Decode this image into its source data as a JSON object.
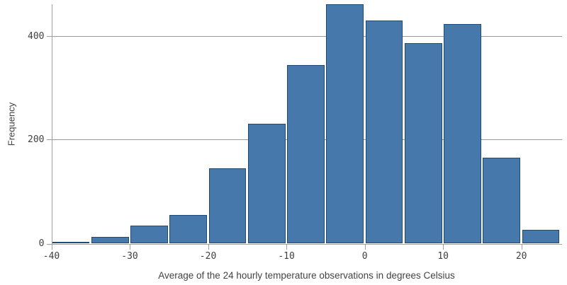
{
  "chart_data": {
    "type": "bar",
    "subtype": "histogram",
    "title": "",
    "xlabel": "Average of the 24 hourly temperature observations in degrees Celsius",
    "ylabel": "Frequency",
    "bin_width": 5,
    "bin_edges": [
      -40,
      -35,
      -30,
      -25,
      -20,
      -15,
      -10,
      -5,
      0,
      5,
      10,
      15,
      20,
      25
    ],
    "values": [
      3,
      13,
      35,
      55,
      145,
      232,
      344,
      462,
      431,
      387,
      424,
      166,
      26
    ],
    "x_ticks": [
      -40,
      -30,
      -20,
      -10,
      0,
      10,
      20
    ],
    "x_tick_labels": [
      "-40",
      "-30",
      "-20",
      "-10",
      "0",
      "10",
      "20"
    ],
    "y_ticks": [
      0,
      200,
      400
    ],
    "y_tick_labels": [
      "0",
      "200",
      "400"
    ],
    "xlim": [
      -40,
      25
    ],
    "ylim": [
      0,
      462
    ],
    "grid": "horizontal",
    "legend": "none",
    "colors": {
      "bar_fill": "#4678ab",
      "bar_border": "#1d4a77",
      "grid": "#9a9a9a",
      "axis": "#9f9f9f",
      "text": "#404040"
    }
  }
}
